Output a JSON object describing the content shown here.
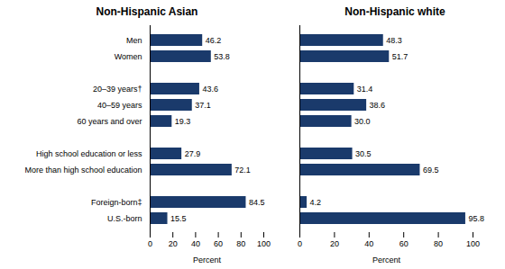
{
  "chart_data": [
    {
      "type": "bar",
      "orientation": "horizontal",
      "title": "Non-Hispanic Asian",
      "categories": [
        "Men",
        "Women",
        null,
        "20–39 years†",
        "40–59 years",
        "60 years and over",
        null,
        "High school education or less",
        "More than high school education",
        null,
        "Foreign-born‡",
        "U.S.-born"
      ],
      "values": [
        46.2,
        53.8,
        null,
        43.6,
        37.1,
        19.3,
        null,
        27.9,
        72.1,
        null,
        84.5,
        15.5
      ],
      "color": "#1a3a6b",
      "xlabel": "Percent",
      "xlim": [
        0,
        100
      ],
      "xticks": [
        0,
        20,
        40,
        60,
        80,
        100
      ],
      "data_labels": true,
      "grid": false
    },
    {
      "type": "bar",
      "orientation": "horizontal",
      "title": "Non-Hispanic white",
      "categories": [
        "Men",
        "Women",
        null,
        "20–39 years†",
        "40–59 years",
        "60 years and over",
        null,
        "High school education or less",
        "More than high school education",
        null,
        "Foreign-born‡",
        "U.S.-born"
      ],
      "values": [
        48.3,
        51.7,
        null,
        31.4,
        38.6,
        30.0,
        null,
        30.5,
        69.5,
        null,
        4.2,
        95.8
      ],
      "value_labels": [
        "48.3",
        "51.7",
        null,
        "31.4",
        "38.6",
        "30.0",
        null,
        "30.5",
        "69.5",
        null,
        "4.2",
        "95.8"
      ],
      "color": "#1a3a6b",
      "xlabel": "Percent",
      "xlim": [
        0,
        100
      ],
      "xticks": [
        0,
        20,
        40,
        60,
        80,
        100
      ],
      "data_labels": true,
      "grid": false,
      "tick_labels": "x"
    }
  ]
}
